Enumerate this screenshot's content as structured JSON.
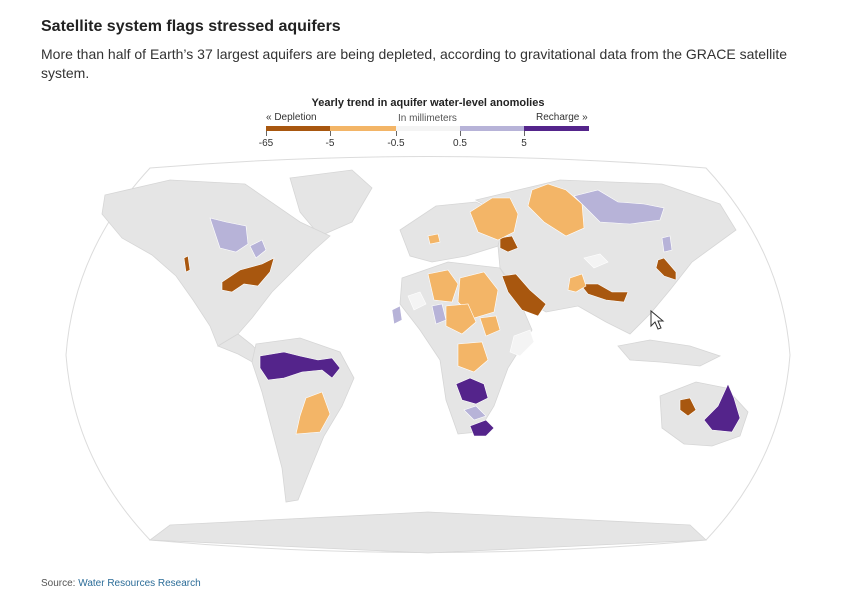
{
  "headline": "Satellite system flags stressed aquifers",
  "dek": "More than half of Earth’s 37 largest aquifers are being depleted, according to gravitational data from the GRACE satellite system.",
  "legend": {
    "title": "Yearly trend in aquifer water-level anomolies",
    "depletion_label": "« Depletion",
    "recharge_label": "Recharge »",
    "unit_label": "In millimeters",
    "ticks": [
      "-65",
      "-5",
      "-0.5",
      "0.5",
      "5"
    ],
    "colors": [
      "#a8570f",
      "#f3b567",
      "#f4f4f4",
      "#b7b3d8",
      "#54248b"
    ]
  },
  "source": {
    "label": "Source:",
    "name": "Water Resources Research"
  },
  "colors": {
    "land": "#e5e5e5",
    "sea": "#ffffff",
    "strong_depletion": "#a8570f",
    "moderate_depletion": "#f3b567",
    "near_zero": "#f4f4f4",
    "moderate_recharge": "#b7b3d8",
    "strong_recharge": "#54248b"
  }
}
